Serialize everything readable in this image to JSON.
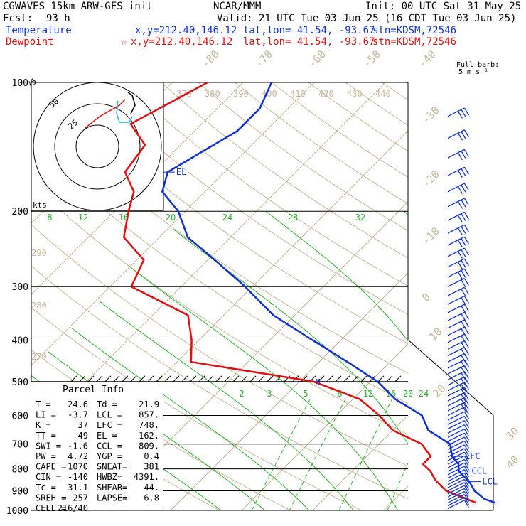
{
  "header": {
    "model": "CGWAVES 15km ARW-GFS init",
    "forecast_label": "Fcst:",
    "forecast_hours": "93 h",
    "org": "NCAR/MMM",
    "init": "Init: 00 UTC Sat 31 May 25",
    "valid": "Valid: 21 UTC Tue 03 Jun 25 (16 CDT Tue 03 Jun 25)"
  },
  "legend": {
    "temperature": {
      "label": "Temperature",
      "xy": "x,y=212.40,146.12",
      "latlon": "lat,lon= 41.54, -93.67",
      "stn": "stn=KDSM,72546",
      "color": "#1030d0"
    },
    "dewpoint": {
      "label": "Dewpoint",
      "star": "☆",
      "xy": "x,y=212.40,146.12",
      "latlon": "lat,lon= 41.54, -93.67",
      "stn": "stn=KDSM,72546",
      "color": "#e01010"
    }
  },
  "barb_legend": {
    "line1": "Full barb:",
    "line2": "5 m s⁻¹"
  },
  "hodograph": {
    "units": "kts",
    "rings": [
      "25",
      "50",
      "75"
    ]
  },
  "parcel_info": {
    "title": "Parcel Info",
    "rows": [
      [
        "T  =",
        "24.6",
        "Td =",
        "21.9"
      ],
      [
        "LI =",
        "-3.7",
        "LCL =",
        "857."
      ],
      [
        "K  =",
        "37",
        "LFC =",
        "748."
      ],
      [
        "TT =",
        "49",
        "EL  =",
        "162."
      ],
      [
        "SWI =",
        "-1.6",
        "CCL =",
        "809."
      ],
      [
        "PW =",
        "4.72",
        "YGP =",
        "0.4"
      ],
      [
        "CAPE =",
        "1070",
        "SNEAT=",
        "381"
      ],
      [
        "CIN =",
        "-140",
        "HWBZ=",
        "4391."
      ],
      [
        "Tc =",
        "31.1",
        "SHEAR=",
        "44."
      ],
      [
        "SREH =",
        "257",
        "LAPSE=",
        "6.8"
      ],
      [
        "CELL =",
        "216/40",
        "",
        ""
      ]
    ]
  },
  "levels": {
    "EL": "EL",
    "LFC": "LFC",
    "CCL": "CCL",
    "LCL": "LCL",
    "M": "M"
  },
  "chart_data": {
    "type": "line",
    "plot": "skew-T log-p sounding",
    "y_axis": {
      "scale": "log",
      "reversed": true,
      "range": [
        100,
        1000
      ],
      "ticks": [
        100,
        200,
        300,
        400,
        500,
        600,
        700,
        800,
        900,
        1000
      ]
    },
    "isotherm_labels": [
      "-80",
      "-70",
      "-60",
      "-50",
      "-40",
      "-30",
      "-20",
      "-10",
      "0",
      "10",
      "20",
      "30",
      "40"
    ],
    "theta_labels": [
      "370",
      "380",
      "390",
      "400",
      "410",
      "420",
      "430",
      "440"
    ],
    "dry_adiabat_labels": [
      "290",
      "280",
      "270"
    ],
    "mixing_ratio_labels_200": [
      "8",
      "12",
      "16",
      "20",
      "24",
      "28",
      "32"
    ],
    "mixing_ratio_labels_550": [
      "2",
      "3",
      "5",
      "8",
      "12",
      "16",
      "20",
      "24"
    ],
    "series": [
      {
        "name": "Temperature",
        "color": "#1030d0",
        "points": [
          [
            100,
            -66
          ],
          [
            115,
            -64
          ],
          [
            130,
            -64
          ],
          [
            145,
            -66
          ],
          [
            162,
            -68
          ],
          [
            180,
            -66
          ],
          [
            200,
            -61
          ],
          [
            230,
            -56
          ],
          [
            260,
            -49
          ],
          [
            300,
            -41
          ],
          [
            350,
            -33
          ],
          [
            400,
            -24
          ],
          [
            450,
            -16
          ],
          [
            500,
            -9
          ],
          [
            550,
            -4
          ],
          [
            600,
            2
          ],
          [
            650,
            5
          ],
          [
            700,
            10
          ],
          [
            748,
            12
          ],
          [
            780,
            14
          ],
          [
            809,
            15
          ],
          [
            857,
            18
          ],
          [
            900,
            20
          ],
          [
            940,
            22.5
          ],
          [
            960,
            24.6
          ]
        ]
      },
      {
        "name": "Dewpoint",
        "color": "#e01010",
        "points": [
          [
            100,
            -75
          ],
          [
            125,
            -80
          ],
          [
            140,
            -75
          ],
          [
            162,
            -74
          ],
          [
            180,
            -70
          ],
          [
            200,
            -68
          ],
          [
            230,
            -65
          ],
          [
            260,
            -59
          ],
          [
            300,
            -57
          ],
          [
            350,
            -45
          ],
          [
            400,
            -41
          ],
          [
            450,
            -38
          ],
          [
            500,
            -18
          ],
          [
            550,
            -9
          ],
          [
            600,
            -4
          ],
          [
            650,
            0
          ],
          [
            700,
            6
          ],
          [
            748,
            9
          ],
          [
            780,
            9
          ],
          [
            809,
            11
          ],
          [
            850,
            13
          ],
          [
            900,
            16
          ],
          [
            940,
            20
          ],
          [
            960,
            21.9
          ]
        ]
      }
    ]
  }
}
